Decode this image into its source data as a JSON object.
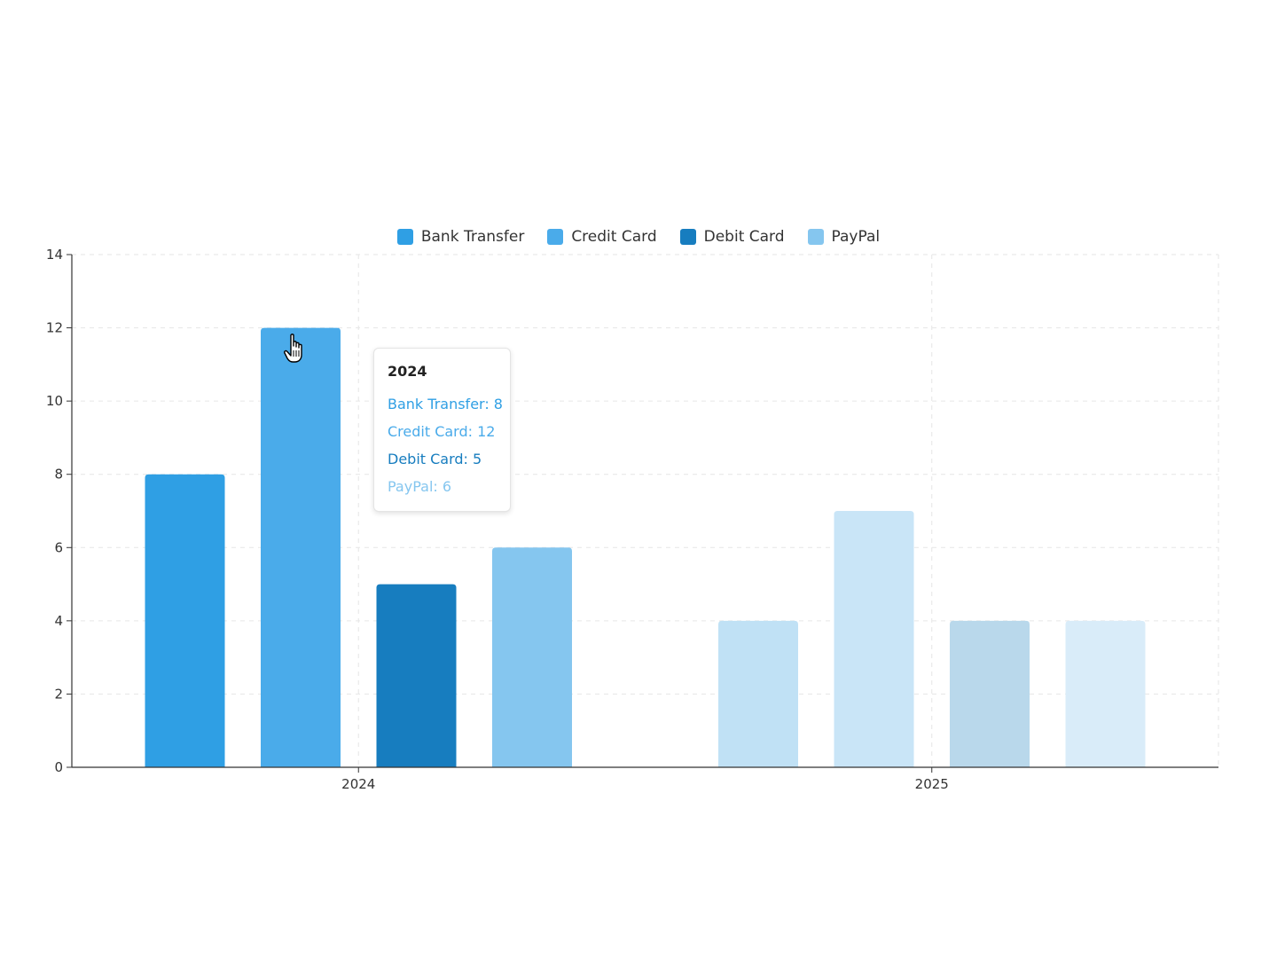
{
  "chart_data": {
    "type": "bar",
    "title": "",
    "xlabel": "",
    "ylabel": "",
    "categories": [
      "2024",
      "2025"
    ],
    "series": [
      {
        "name": "Bank Transfer",
        "values": [
          8,
          4
        ],
        "color": "#2f9fe4",
        "faded_color": "#c0e1f5"
      },
      {
        "name": "Credit Card",
        "values": [
          12,
          7
        ],
        "color": "#4aabea",
        "faded_color": "#c9e5f7"
      },
      {
        "name": "Debit Card",
        "values": [
          5,
          4
        ],
        "color": "#177dbf",
        "faded_color": "#b9d8eb"
      },
      {
        "name": "PayPal",
        "values": [
          6,
          4
        ],
        "color": "#85c6ef",
        "faded_color": "#d9ecf9"
      }
    ],
    "ylim": [
      0,
      14
    ],
    "yticks": [
      "0",
      "2",
      "4",
      "6",
      "8",
      "10",
      "12",
      "14"
    ],
    "grid": true,
    "legend_position": "top-center",
    "active_category": "2024"
  },
  "tooltip": {
    "title": "2024",
    "rows": [
      {
        "text": "Bank Transfer: 8",
        "color": "#2f9fe4"
      },
      {
        "text": "Credit Card: 12",
        "color": "#4aabea"
      },
      {
        "text": "Debit Card: 5",
        "color": "#177dbf"
      },
      {
        "text": "PayPal: 6",
        "color": "#85c6ef"
      }
    ]
  },
  "cursor": {
    "icon": "hand-pointer-icon"
  }
}
